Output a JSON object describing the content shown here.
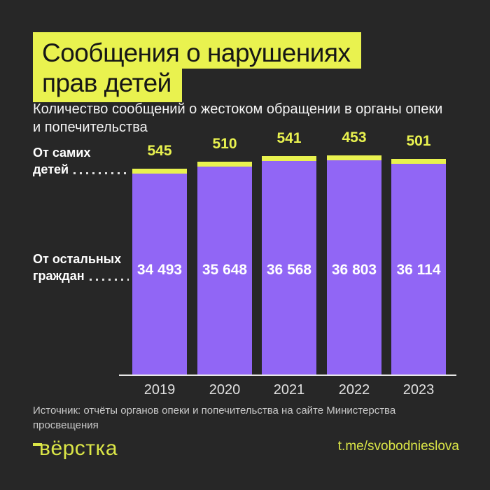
{
  "header": {
    "title_line1": "Сообщения о нарушениях",
    "title_line2": "прав детей",
    "subtitle_line1": "Количество сообщений о жестоком обращении в органы опеки",
    "subtitle_line2": "и попечительства"
  },
  "chart_data": {
    "type": "bar",
    "stacked": true,
    "title": "Сообщения о нарушениях прав детей",
    "subtitle": "Количество сообщений о жестоком обращении в органы опеки и попечительства",
    "categories": [
      "2019",
      "2020",
      "2021",
      "2022",
      "2023"
    ],
    "series": [
      {
        "name": "От самих детей",
        "values": [
          545,
          510,
          541,
          453,
          501
        ],
        "labels": [
          "545",
          "510",
          "541",
          "453",
          "501"
        ],
        "color": "#e9f24f"
      },
      {
        "name": "От остальных граждан",
        "values": [
          34493,
          35648,
          36568,
          36803,
          36114
        ],
        "labels": [
          "34 493",
          "35 648",
          "36 568",
          "36 803",
          "36 114"
        ],
        "color": "#9166f5"
      }
    ],
    "ylim": [
      0,
      37256
    ],
    "grid": false,
    "legend_position": "left-leader-labels",
    "value_labels": "series1 above bars in yellow, series2 inside bars in white"
  },
  "leader_labels": {
    "series1_line1": "От самих",
    "series1_line2": "детей",
    "series2_line1": "От остальных",
    "series2_line2": "граждан"
  },
  "footer": {
    "source_line1": "Источник: отчёты органов опеки и попечительства на сайте Министерства",
    "source_line2": "просвещения",
    "logo_text": "вёрстка",
    "telegram_link": "t.me/svobodnieslova"
  },
  "colors": {
    "background": "#272727",
    "highlight_yellow": "#e9f24f",
    "footer_yellow": "#dbe647",
    "bar_purple": "#9166f5",
    "title_text": "#161616",
    "white_text": "#ffffff",
    "muted_text": "#c9c9c9"
  }
}
